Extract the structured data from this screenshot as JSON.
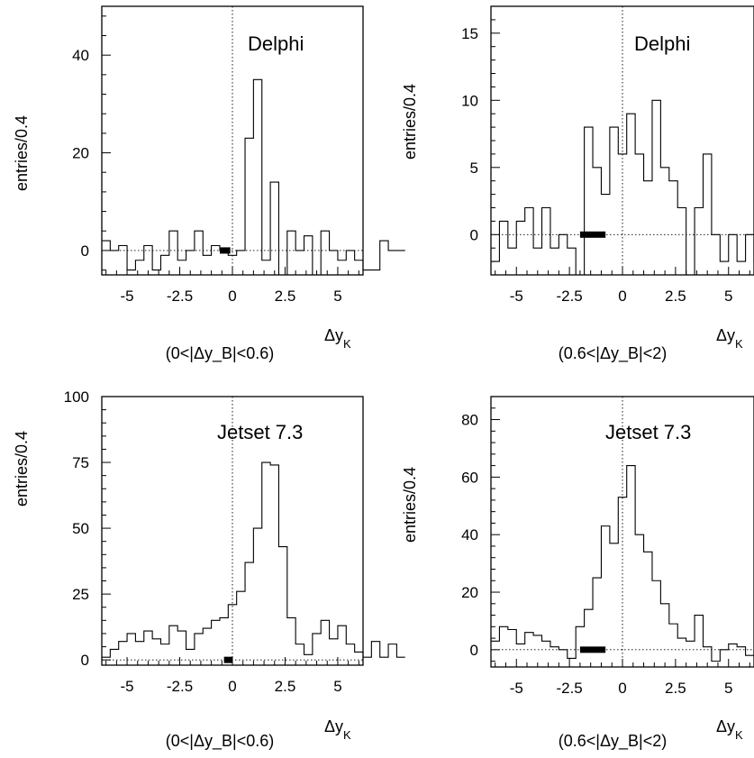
{
  "chart_data": [
    {
      "type": "step-histogram",
      "title": "Delphi",
      "ylabel": "entries/0.4",
      "xlabel": "Δy_K",
      "selection": "(0<|Δy_B|<0.6)",
      "xlim": [
        -6.2,
        6.2
      ],
      "ylim": [
        -5,
        50
      ],
      "xticks": [
        "-5",
        "-2.5",
        "0",
        "2.5",
        "5"
      ],
      "xtick_values": [
        -5,
        -2.5,
        0,
        2.5,
        5
      ],
      "yticks": [
        "0",
        "20",
        "40"
      ],
      "ytick_values": [
        0,
        20,
        40
      ],
      "bin_edges_start": -6.2,
      "bin_width": 0.4,
      "values": [
        2,
        0,
        1,
        -4,
        -2,
        1,
        -4,
        -1,
        4,
        -2,
        0,
        4,
        -1,
        1,
        0,
        -1,
        0,
        23,
        35,
        -2,
        14,
        -5,
        4,
        0,
        3,
        -5,
        4,
        0,
        -2,
        0,
        -2,
        -4,
        -4,
        2,
        0,
        0
      ],
      "interval_bar": [
        -0.6,
        -0.1
      ],
      "reference_lines": {
        "y": 0,
        "x": 0
      }
    },
    {
      "type": "step-histogram",
      "title": "Delphi",
      "ylabel": "entries/0.4",
      "xlabel": "Δy_K",
      "selection": "(0.6<|Δy_B|<2)",
      "xlim": [
        -6.2,
        6.2
      ],
      "ylim": [
        -3,
        17
      ],
      "xticks": [
        "-5",
        "-2.5",
        "0",
        "2.5",
        "5"
      ],
      "xtick_values": [
        -5,
        -2.5,
        0,
        2.5,
        5
      ],
      "yticks": [
        "0",
        "5",
        "10",
        "15"
      ],
      "ytick_values": [
        0,
        5,
        10,
        15
      ],
      "bin_edges_start": -6.2,
      "bin_width": 0.4,
      "values": [
        -2,
        1,
        -1,
        1,
        2,
        -1,
        2,
        -1,
        0,
        -1,
        -3,
        8,
        5,
        3,
        8,
        6,
        9,
        6,
        4,
        10,
        5,
        4,
        2,
        -3,
        2,
        6,
        0,
        -2,
        0,
        -2,
        0,
        -2,
        1,
        -3,
        1,
        0
      ],
      "interval_bar": [
        -2.0,
        -0.8
      ],
      "reference_lines": {
        "y": 0,
        "x": 0
      }
    },
    {
      "type": "step-histogram",
      "title": "Jetset 7.3",
      "ylabel": "entries/0.4",
      "xlabel": "Δy_K",
      "selection": "(0<|Δy_B|<0.6)",
      "xlim": [
        -6.2,
        6.2
      ],
      "ylim": [
        -2,
        100
      ],
      "xticks": [
        "-5",
        "-2.5",
        "0",
        "2.5",
        "5"
      ],
      "xtick_values": [
        -5,
        -2.5,
        0,
        2.5,
        5
      ],
      "yticks": [
        "0",
        "25",
        "50",
        "75",
        "100"
      ],
      "ytick_values": [
        0,
        25,
        50,
        75,
        100
      ],
      "bin_edges_start": -6.2,
      "bin_width": 0.4,
      "values": [
        1,
        4,
        7,
        10,
        7,
        11,
        8,
        6,
        13,
        11,
        4,
        10,
        12,
        15,
        16,
        21,
        26,
        37,
        50,
        75,
        74,
        43,
        16,
        6,
        2,
        10,
        15,
        8,
        13,
        6,
        3,
        1,
        7,
        1,
        6,
        1
      ],
      "interval_bar": [
        -0.4,
        0.0
      ],
      "reference_lines": {
        "y": 0,
        "x": 0
      }
    },
    {
      "type": "step-histogram",
      "title": "Jetset 7.3",
      "ylabel": "entries/0.4",
      "xlabel": "Δy_K",
      "selection": "(0.6<|Δy_B|<2)",
      "xlim": [
        -6.2,
        6.2
      ],
      "ylim": [
        -6,
        88
      ],
      "xticks": [
        "-5",
        "-2.5",
        "0",
        "2.5",
        "5"
      ],
      "xtick_values": [
        -5,
        -2.5,
        0,
        2.5,
        5
      ],
      "yticks": [
        "0",
        "20",
        "40",
        "60",
        "80"
      ],
      "ytick_values": [
        0,
        20,
        40,
        60,
        80
      ],
      "bin_edges_start": -6.2,
      "bin_width": 0.4,
      "values": [
        3,
        8,
        7,
        2,
        6,
        5,
        3,
        1,
        0,
        -3,
        8,
        14,
        25,
        43,
        37,
        53,
        64,
        40,
        34,
        24,
        16,
        9,
        4,
        3,
        12,
        1,
        -4,
        0,
        2,
        1,
        -2,
        0,
        3,
        -2,
        2,
        8
      ],
      "interval_bar": [
        -2.0,
        -0.8
      ],
      "reference_lines": {
        "y": 0,
        "x": 0
      }
    }
  ]
}
